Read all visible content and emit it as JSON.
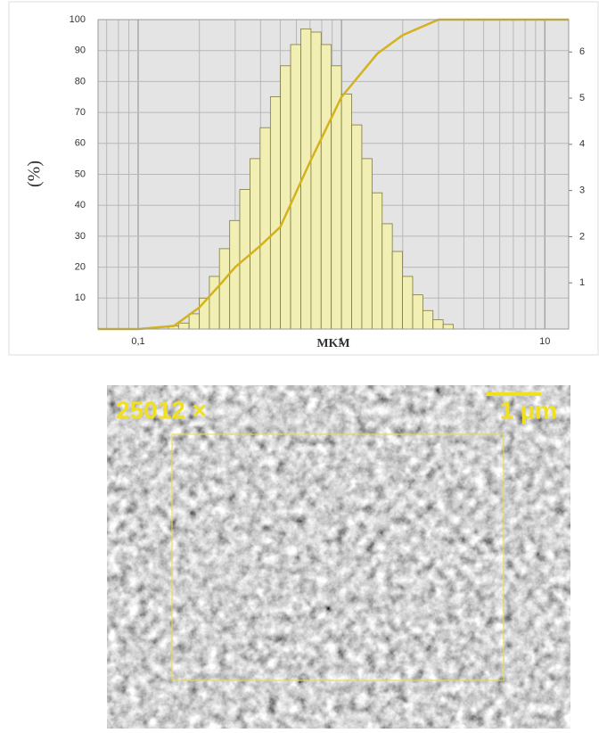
{
  "chart_data": {
    "type": "histogram",
    "log_x": true,
    "grid": true,
    "ylabel": "(%)",
    "xlabel": "MKM",
    "xlim": [
      0.0635,
      13.1
    ],
    "xticks": [
      {
        "value": 0.1,
        "label": "0,1"
      },
      1,
      10
    ],
    "x_minor_ticks": [
      0.07,
      0.08,
      0.09,
      0.2,
      0.3,
      0.4,
      0.5,
      0.6,
      0.7,
      0.8,
      0.9,
      2,
      3,
      4,
      5,
      6,
      7,
      8,
      9
    ],
    "ylim": [
      0,
      100
    ],
    "yticks": [
      10,
      20,
      30,
      40,
      50,
      60,
      70,
      80,
      90,
      100
    ],
    "y2lim": [
      0,
      6.7
    ],
    "y2ticks": [
      1,
      2,
      3,
      4,
      5,
      6
    ],
    "bins": [
      0.141,
      0.158,
      0.178,
      0.2,
      0.224,
      0.251,
      0.282,
      0.316,
      0.355,
      0.398,
      0.447,
      0.501,
      0.562,
      0.631,
      0.708,
      0.794,
      0.891,
      1,
      1.122,
      1.259,
      1.413,
      1.585,
      1.778,
      1.995,
      2.239,
      2.512,
      2.818,
      3.162,
      3.548
    ],
    "values": [
      0.07,
      0.13,
      0.33,
      0.67,
      1.14,
      1.74,
      2.35,
      3.02,
      3.69,
      4.36,
      5.03,
      5.7,
      6.16,
      6.5,
      6.43,
      6.16,
      5.7,
      5.09,
      4.42,
      3.69,
      2.95,
      2.28,
      1.68,
      1.14,
      0.74,
      0.4,
      0.2,
      0.1
    ],
    "axis": "y2",
    "color": "#f2efb4",
    "line": {
      "x": [
        0.0635,
        0.1,
        0.15,
        0.2,
        0.25,
        0.3,
        0.4,
        0.5,
        0.7,
        1,
        1.5,
        2,
        3,
        13.1
      ],
      "values": [
        0,
        0,
        1,
        7,
        14,
        20,
        27,
        33,
        54,
        75,
        89,
        95,
        100,
        100
      ],
      "color": "#d4b21e"
    }
  },
  "image": {
    "magnification": "25012 ×",
    "scale_bar": "1 µm"
  }
}
